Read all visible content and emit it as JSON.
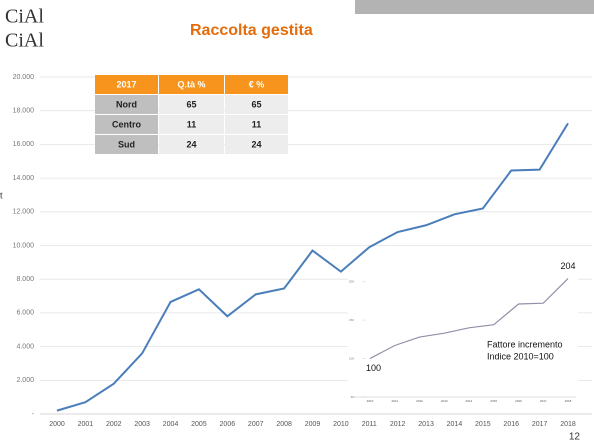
{
  "header": {
    "title": "Raccolta gestita",
    "logo": "CiAl",
    "page_number": "12"
  },
  "table": {
    "header": [
      "2017",
      "Q.tà %",
      "€ %"
    ],
    "rows": [
      [
        "Nord",
        "65",
        "65"
      ],
      [
        "Centro",
        "11",
        "11"
      ],
      [
        "Sud",
        "24",
        "24"
      ]
    ]
  },
  "chart_data": [
    {
      "type": "line",
      "y_label": "t",
      "categories": [
        "2000",
        "2001",
        "2002",
        "2003",
        "2004",
        "2005",
        "2006",
        "2007",
        "2008",
        "2009",
        "2010",
        "2011",
        "2012",
        "2013",
        "2014",
        "2015",
        "2016",
        "2017",
        "2018"
      ],
      "values": [
        200,
        700,
        1800,
        3600,
        6650,
        7400,
        5800,
        7100,
        7450,
        9700,
        8450,
        9900,
        10800,
        11200,
        11850,
        12200,
        14450,
        14500,
        17250
      ],
      "color": "#4a7ebb",
      "ylim": [
        0,
        20000
      ],
      "yticks": [
        {
          "value": 0,
          "label": "-"
        },
        {
          "value": 2000,
          "label": "2.000"
        },
        {
          "value": 4000,
          "label": "4.000"
        },
        {
          "value": 6000,
          "label": "6.000"
        },
        {
          "value": 8000,
          "label": "8.000"
        },
        {
          "value": 10000,
          "label": "10.000"
        },
        {
          "value": 12000,
          "label": "12.000"
        },
        {
          "value": 14000,
          "label": "14.000"
        },
        {
          "value": 16000,
          "label": "16.000"
        },
        {
          "value": 18000,
          "label": "18.000"
        },
        {
          "value": 20000,
          "label": "20.000"
        }
      ],
      "grid": true
    },
    {
      "type": "line",
      "categories": [
        "2010",
        "2011",
        "2012",
        "2013",
        "2014",
        "2015",
        "2016",
        "2017",
        "2018"
      ],
      "values": [
        100,
        117,
        128,
        133,
        140,
        144,
        171,
        172,
        204
      ],
      "color": "#9090a8",
      "ylim": [
        50,
        210
      ],
      "yticks": [
        50,
        100,
        150,
        200
      ],
      "grid": false,
      "annotations": [
        "Fattore incremento",
        "Indice 2010=100"
      ]
    }
  ]
}
